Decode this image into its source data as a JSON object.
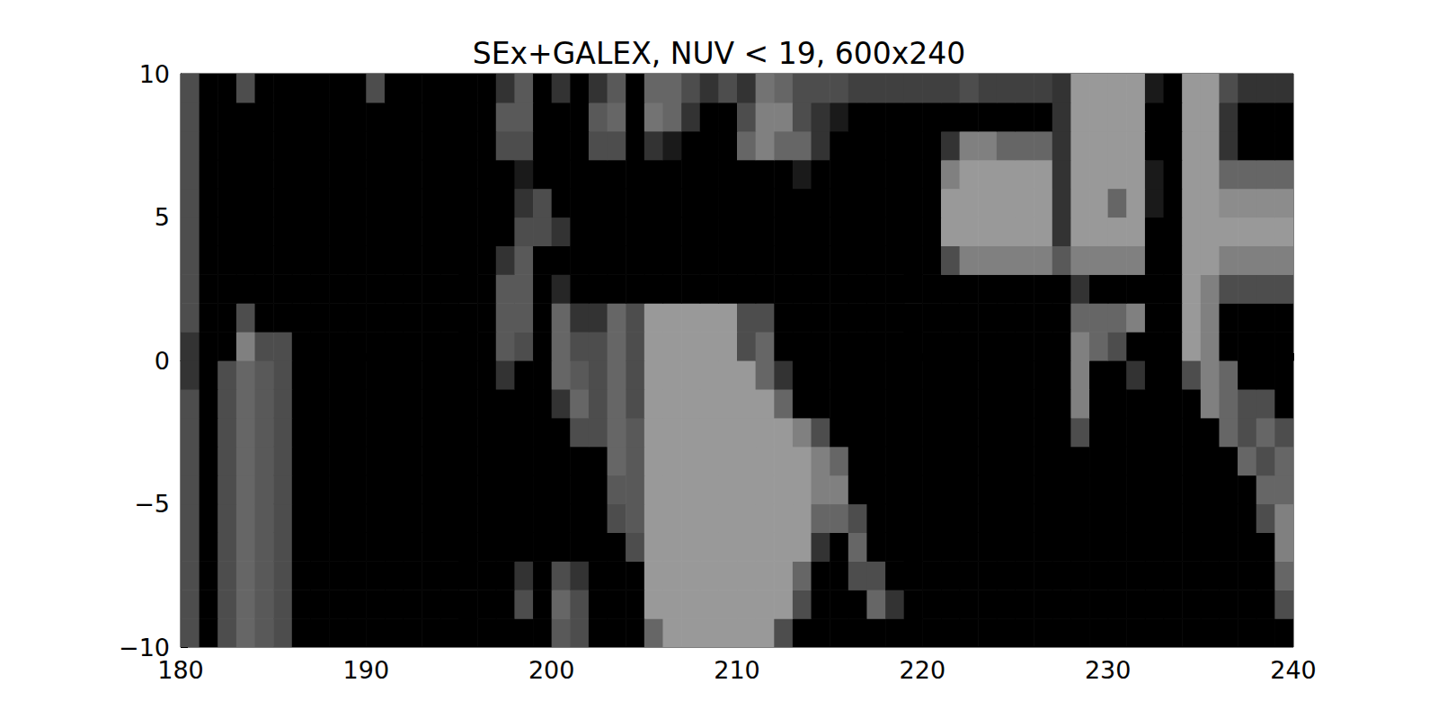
{
  "chart_data": {
    "type": "heatmap",
    "title": "SEx+GALEX, NUV < 19, 600x240",
    "xlim": [
      180,
      240
    ],
    "ylim": [
      -10,
      10
    ],
    "xticks": [
      180,
      190,
      200,
      210,
      220,
      230,
      240
    ],
    "yticks": [
      {
        "value": -10,
        "label": "−10"
      },
      {
        "value": -5,
        "label": "−5"
      },
      0,
      5,
      10
    ],
    "zlim": [
      0,
      1
    ],
    "xbins": [
      180,
      181,
      182,
      183,
      184,
      185,
      186,
      187,
      188,
      189,
      190,
      191,
      192,
      193,
      194,
      195,
      196,
      197,
      198,
      199,
      200,
      201,
      202,
      203,
      204,
      205,
      206,
      207,
      208,
      209,
      210,
      211,
      212,
      213,
      214,
      215,
      216,
      217,
      218,
      219,
      220,
      221,
      222,
      223,
      224,
      225,
      226,
      227,
      228,
      229,
      230,
      231,
      232,
      233,
      234,
      235,
      236,
      237,
      238,
      239,
      240
    ],
    "ybins": [
      -10,
      -9,
      -8,
      -7,
      -6,
      -5,
      -4,
      -3,
      -2,
      -1,
      0,
      1,
      2,
      3,
      4,
      5,
      6,
      7,
      8,
      9,
      10
    ],
    "cells": [
      [
        0.3,
        0,
        0.3,
        0.4,
        0.35,
        0.3,
        0,
        0,
        0,
        0,
        0,
        0,
        0,
        0,
        0,
        0,
        0,
        0,
        0,
        0,
        0.35,
        0.3,
        0,
        0,
        0,
        0.4,
        0.6,
        0.6,
        0.6,
        0.6,
        0.6,
        0.6,
        0.3,
        0,
        0,
        0,
        0,
        0,
        0,
        0,
        0,
        0,
        0,
        0,
        0,
        0,
        0,
        0,
        0,
        0,
        0,
        0,
        0,
        0,
        0,
        0,
        0,
        0,
        0,
        0
      ],
      [
        0.3,
        0,
        0.3,
        0.4,
        0.35,
        0.3,
        0,
        0,
        0,
        0,
        0,
        0,
        0,
        0,
        0,
        0,
        0,
        0,
        0.3,
        0,
        0.4,
        0.3,
        0,
        0,
        0,
        0.6,
        0.6,
        0.6,
        0.6,
        0.6,
        0.6,
        0.6,
        0.6,
        0.3,
        0,
        0,
        0,
        0.4,
        0.2,
        0,
        0,
        0,
        0,
        0,
        0,
        0,
        0,
        0,
        0,
        0,
        0,
        0,
        0,
        0,
        0,
        0,
        0,
        0,
        0,
        0.3
      ],
      [
        0.3,
        0,
        0.3,
        0.4,
        0.35,
        0.3,
        0,
        0,
        0,
        0,
        0,
        0,
        0,
        0,
        0,
        0,
        0,
        0,
        0.2,
        0,
        0.3,
        0.2,
        0,
        0,
        0,
        0.6,
        0.6,
        0.6,
        0.6,
        0.6,
        0.6,
        0.6,
        0.6,
        0.4,
        0,
        0,
        0.3,
        0.3,
        0,
        0,
        0,
        0,
        0,
        0,
        0,
        0,
        0,
        0,
        0,
        0,
        0,
        0,
        0,
        0,
        0,
        0,
        0,
        0,
        0,
        0.4
      ],
      [
        0.3,
        0,
        0.3,
        0.4,
        0.35,
        0.3,
        0,
        0,
        0,
        0,
        0,
        0,
        0,
        0,
        0,
        0,
        0,
        0,
        0,
        0,
        0,
        0,
        0,
        0,
        0.3,
        0.6,
        0.6,
        0.6,
        0.6,
        0.6,
        0.6,
        0.6,
        0.6,
        0.6,
        0.2,
        0,
        0.4,
        0,
        0,
        0,
        0,
        0,
        0,
        0,
        0,
        0,
        0,
        0,
        0,
        0,
        0,
        0,
        0,
        0,
        0,
        0,
        0,
        0,
        0,
        0.5
      ],
      [
        0.3,
        0,
        0.3,
        0.4,
        0.35,
        0.3,
        0,
        0,
        0,
        0,
        0,
        0,
        0,
        0,
        0,
        0,
        0,
        0,
        0,
        0,
        0,
        0,
        0,
        0.3,
        0.35,
        0.6,
        0.6,
        0.6,
        0.6,
        0.6,
        0.6,
        0.6,
        0.6,
        0.6,
        0.4,
        0.4,
        0.3,
        0,
        0,
        0,
        0,
        0,
        0,
        0,
        0,
        0,
        0,
        0,
        0,
        0,
        0,
        0,
        0,
        0,
        0,
        0,
        0,
        0,
        0.3,
        0.5
      ],
      [
        0.3,
        0,
        0.3,
        0.4,
        0.35,
        0.3,
        0,
        0,
        0,
        0,
        0,
        0,
        0,
        0,
        0,
        0,
        0,
        0,
        0,
        0,
        0,
        0,
        0,
        0.35,
        0.35,
        0.6,
        0.6,
        0.6,
        0.6,
        0.6,
        0.6,
        0.6,
        0.6,
        0.6,
        0.5,
        0.5,
        0,
        0,
        0,
        0,
        0,
        0,
        0,
        0,
        0,
        0,
        0,
        0,
        0,
        0,
        0,
        0,
        0,
        0,
        0,
        0,
        0,
        0,
        0.4,
        0.4
      ],
      [
        0.3,
        0,
        0.3,
        0.4,
        0.35,
        0.3,
        0,
        0,
        0,
        0,
        0,
        0,
        0,
        0,
        0,
        0,
        0,
        0,
        0,
        0,
        0,
        0,
        0,
        0.4,
        0.35,
        0.6,
        0.6,
        0.6,
        0.6,
        0.6,
        0.6,
        0.6,
        0.6,
        0.6,
        0.5,
        0.4,
        0,
        0,
        0,
        0,
        0,
        0,
        0,
        0,
        0,
        0,
        0,
        0,
        0,
        0,
        0,
        0,
        0,
        0,
        0,
        0,
        0,
        0.4,
        0.3,
        0.4
      ],
      [
        0.3,
        0,
        0.3,
        0.4,
        0.35,
        0.3,
        0,
        0,
        0,
        0,
        0,
        0,
        0,
        0,
        0,
        0,
        0,
        0,
        0,
        0,
        0,
        0.3,
        0.3,
        0.4,
        0.35,
        0.6,
        0.6,
        0.6,
        0.6,
        0.6,
        0.6,
        0.6,
        0.6,
        0.5,
        0.3,
        0,
        0,
        0,
        0,
        0,
        0,
        0,
        0,
        0,
        0,
        0,
        0,
        0,
        0.3,
        0,
        0,
        0,
        0,
        0,
        0,
        0,
        0.4,
        0.3,
        0.4,
        0.3
      ],
      [
        0.3,
        0,
        0.3,
        0.4,
        0.35,
        0.3,
        0,
        0,
        0,
        0,
        0,
        0,
        0,
        0,
        0,
        0,
        0,
        0,
        0,
        0,
        0.2,
        0.4,
        0.3,
        0.4,
        0.3,
        0.6,
        0.6,
        0.6,
        0.6,
        0.6,
        0.6,
        0.6,
        0.4,
        0,
        0,
        0,
        0,
        0,
        0,
        0,
        0,
        0,
        0,
        0,
        0,
        0,
        0,
        0,
        0.5,
        0,
        0,
        0,
        0,
        0,
        0,
        0.5,
        0.4,
        0.3,
        0.3,
        0
      ],
      [
        0.2,
        0,
        0.3,
        0.4,
        0.35,
        0.3,
        0,
        0,
        0,
        0,
        0,
        0,
        0,
        0,
        0,
        0,
        0,
        0.2,
        0,
        0,
        0.4,
        0.35,
        0.3,
        0.4,
        0.3,
        0.6,
        0.6,
        0.6,
        0.6,
        0.6,
        0.6,
        0.4,
        0.2,
        0,
        0,
        0,
        0,
        0,
        0,
        0,
        0,
        0,
        0,
        0,
        0,
        0,
        0,
        0,
        0.5,
        0,
        0,
        0.2,
        0,
        0,
        0.3,
        0.5,
        0.4,
        0,
        0,
        0
      ],
      [
        0.2,
        0,
        0,
        0.5,
        0.3,
        0.3,
        0,
        0,
        0,
        0,
        0,
        0,
        0,
        0,
        0,
        0,
        0,
        0.35,
        0.3,
        0,
        0.4,
        0.3,
        0.3,
        0.4,
        0.3,
        0.6,
        0.6,
        0.6,
        0.6,
        0.6,
        0.3,
        0.4,
        0,
        0,
        0,
        0,
        0,
        0,
        0,
        0,
        0,
        0,
        0,
        0,
        0,
        0,
        0,
        0,
        0.5,
        0.4,
        0.3,
        0,
        0,
        0,
        0.6,
        0.5,
        0,
        0,
        0,
        0
      ],
      [
        0.3,
        0,
        0,
        0.3,
        0,
        0,
        0,
        0,
        0,
        0,
        0,
        0,
        0,
        0,
        0,
        0,
        0,
        0.35,
        0.35,
        0,
        0.4,
        0.2,
        0.2,
        0.4,
        0.3,
        0.6,
        0.6,
        0.6,
        0.6,
        0.6,
        0.3,
        0.3,
        0,
        0,
        0,
        0,
        0,
        0,
        0,
        0,
        0,
        0,
        0,
        0,
        0,
        0,
        0,
        0,
        0.4,
        0.4,
        0.4,
        0.5,
        0,
        0,
        0.6,
        0.5,
        0,
        0,
        0,
        0
      ],
      [
        0.3,
        0,
        0,
        0,
        0,
        0,
        0,
        0,
        0,
        0,
        0,
        0,
        0,
        0,
        0,
        0,
        0,
        0.35,
        0.35,
        0,
        0.15,
        0,
        0,
        0,
        0,
        0,
        0,
        0,
        0,
        0,
        0,
        0,
        0,
        0,
        0,
        0,
        0,
        0,
        0,
        0,
        0,
        0,
        0,
        0,
        0,
        0,
        0,
        0,
        0.2,
        0,
        0,
        0,
        0,
        0,
        0.6,
        0.5,
        0.3,
        0.3,
        0.3,
        0.3
      ],
      [
        0.3,
        0,
        0,
        0,
        0,
        0,
        0,
        0,
        0,
        0,
        0,
        0,
        0,
        0,
        0,
        0,
        0,
        0.2,
        0.35,
        0,
        0,
        0,
        0,
        0,
        0,
        0,
        0,
        0,
        0,
        0,
        0,
        0,
        0,
        0,
        0,
        0,
        0,
        0,
        0,
        0,
        0,
        0.3,
        0.5,
        0.5,
        0.5,
        0.5,
        0.5,
        0.35,
        0.5,
        0.5,
        0.5,
        0.5,
        0,
        0,
        0.6,
        0.6,
        0.5,
        0.5,
        0.5,
        0.5
      ],
      [
        0.3,
        0,
        0,
        0,
        0,
        0,
        0,
        0,
        0,
        0,
        0,
        0,
        0,
        0,
        0,
        0,
        0,
        0,
        0.3,
        0.3,
        0.2,
        0,
        0,
        0,
        0,
        0,
        0,
        0,
        0,
        0,
        0,
        0,
        0,
        0,
        0,
        0,
        0,
        0,
        0,
        0,
        0,
        0.6,
        0.6,
        0.6,
        0.6,
        0.6,
        0.6,
        0.2,
        0.6,
        0.6,
        0.6,
        0.6,
        0,
        0,
        0.6,
        0.6,
        0.6,
        0.6,
        0.6,
        0.6
      ],
      [
        0.3,
        0,
        0,
        0,
        0,
        0,
        0,
        0,
        0,
        0,
        0,
        0,
        0,
        0,
        0,
        0,
        0,
        0,
        0.2,
        0.3,
        0,
        0,
        0,
        0,
        0,
        0,
        0,
        0,
        0,
        0,
        0,
        0,
        0,
        0,
        0,
        0,
        0,
        0,
        0,
        0,
        0,
        0.6,
        0.6,
        0.6,
        0.6,
        0.6,
        0.6,
        0.2,
        0.6,
        0.6,
        0.4,
        0.6,
        0.1,
        0,
        0.6,
        0.6,
        0.55,
        0.55,
        0.55,
        0.55
      ],
      [
        0.3,
        0,
        0,
        0,
        0,
        0,
        0,
        0,
        0,
        0,
        0,
        0,
        0,
        0,
        0,
        0,
        0,
        0,
        0.1,
        0,
        0,
        0,
        0,
        0,
        0,
        0,
        0,
        0,
        0,
        0,
        0,
        0,
        0,
        0.1,
        0,
        0,
        0,
        0,
        0,
        0,
        0,
        0.5,
        0.6,
        0.6,
        0.6,
        0.6,
        0.6,
        0.2,
        0.6,
        0.6,
        0.6,
        0.6,
        0.1,
        0,
        0.6,
        0.6,
        0.4,
        0.4,
        0.4,
        0.4
      ],
      [
        0.3,
        0,
        0,
        0,
        0,
        0,
        0,
        0,
        0,
        0,
        0,
        0,
        0,
        0,
        0,
        0,
        0,
        0.3,
        0.3,
        0,
        0,
        0,
        0.3,
        0.3,
        0,
        0.2,
        0.1,
        0,
        0,
        0,
        0.4,
        0.5,
        0.4,
        0.4,
        0.2,
        0,
        0,
        0,
        0,
        0,
        0,
        0.2,
        0.5,
        0.5,
        0.4,
        0.4,
        0.4,
        0.2,
        0.6,
        0.6,
        0.6,
        0.6,
        0,
        0,
        0.6,
        0.6,
        0.2,
        0,
        0,
        0
      ],
      [
        0.3,
        0,
        0,
        0,
        0,
        0,
        0,
        0,
        0,
        0,
        0,
        0,
        0,
        0,
        0,
        0,
        0,
        0.35,
        0.35,
        0,
        0,
        0,
        0.35,
        0.4,
        0,
        0.45,
        0.4,
        0.2,
        0,
        0,
        0.3,
        0.5,
        0.5,
        0.3,
        0.2,
        0.1,
        0,
        0,
        0,
        0,
        0,
        0,
        0,
        0,
        0,
        0,
        0,
        0.2,
        0.6,
        0.6,
        0.6,
        0.6,
        0,
        0,
        0.6,
        0.6,
        0.2,
        0,
        0,
        0
      ],
      [
        0.3,
        0,
        0,
        0.3,
        0,
        0,
        0,
        0,
        0,
        0,
        0.3,
        0,
        0,
        0,
        0,
        0,
        0,
        0.2,
        0.35,
        0,
        0.2,
        0,
        0.2,
        0.35,
        0,
        0.4,
        0.4,
        0.3,
        0.2,
        0.3,
        0.2,
        0.45,
        0.4,
        0.3,
        0.3,
        0.3,
        0.25,
        0.25,
        0.25,
        0.25,
        0.25,
        0.25,
        0.3,
        0.25,
        0.25,
        0.25,
        0.25,
        0.2,
        0.6,
        0.6,
        0.6,
        0.6,
        0.1,
        0,
        0.6,
        0.6,
        0.3,
        0.2,
        0.2,
        0.2
      ]
    ]
  }
}
